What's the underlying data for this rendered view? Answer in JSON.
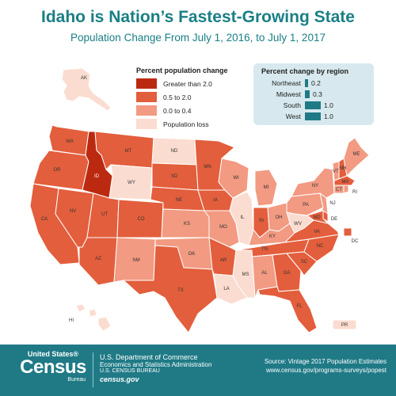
{
  "header": {
    "title": "Idaho is Nation’s Fastest-Growing State",
    "subtitle": "Population Change From July 1, 2016, to July 1, 2017"
  },
  "colors": {
    "greater_2": "#bb2a10",
    "c05_2": "#e35e3c",
    "c0_04": "#f29a82",
    "loss": "#fbdcd0",
    "border": "#ffffff",
    "accent": "#1f7a86"
  },
  "legend": {
    "title": "Percent population change",
    "items": [
      {
        "label": "Greater than 2.0",
        "key": "greater_2"
      },
      {
        "label": "0.5 to 2.0",
        "key": "c05_2"
      },
      {
        "label": "0.0 to 0.4",
        "key": "c0_04"
      },
      {
        "label": "Population loss",
        "key": "loss"
      }
    ]
  },
  "regions": {
    "title": "Percent change by region",
    "items": [
      {
        "name": "Northeast",
        "value": "0.2",
        "pct": 0.2
      },
      {
        "name": "Midwest",
        "value": "0.3",
        "pct": 0.3
      },
      {
        "name": "South",
        "value": "1.0",
        "pct": 1.0
      },
      {
        "name": "West",
        "value": "1.0",
        "pct": 1.0
      }
    ]
  },
  "states": [
    {
      "abbr": "WA",
      "cat": "c05_2"
    },
    {
      "abbr": "OR",
      "cat": "c05_2"
    },
    {
      "abbr": "CA",
      "cat": "c05_2"
    },
    {
      "abbr": "NV",
      "cat": "c05_2"
    },
    {
      "abbr": "ID",
      "cat": "greater_2"
    },
    {
      "abbr": "MT",
      "cat": "c05_2"
    },
    {
      "abbr": "WY",
      "cat": "loss"
    },
    {
      "abbr": "UT",
      "cat": "c05_2"
    },
    {
      "abbr": "AZ",
      "cat": "c05_2"
    },
    {
      "abbr": "CO",
      "cat": "c05_2"
    },
    {
      "abbr": "NM",
      "cat": "c0_04"
    },
    {
      "abbr": "ND",
      "cat": "loss"
    },
    {
      "abbr": "SD",
      "cat": "c05_2"
    },
    {
      "abbr": "NE",
      "cat": "c05_2"
    },
    {
      "abbr": "KS",
      "cat": "c0_04"
    },
    {
      "abbr": "OK",
      "cat": "c0_04"
    },
    {
      "abbr": "TX",
      "cat": "c05_2"
    },
    {
      "abbr": "MN",
      "cat": "c05_2"
    },
    {
      "abbr": "IA",
      "cat": "c05_2"
    },
    {
      "abbr": "MO",
      "cat": "c0_04"
    },
    {
      "abbr": "AR",
      "cat": "c05_2"
    },
    {
      "abbr": "LA",
      "cat": "loss"
    },
    {
      "abbr": "WI",
      "cat": "c0_04"
    },
    {
      "abbr": "IL",
      "cat": "loss"
    },
    {
      "abbr": "MS",
      "cat": "loss"
    },
    {
      "abbr": "MI",
      "cat": "c0_04"
    },
    {
      "abbr": "IN",
      "cat": "c05_2"
    },
    {
      "abbr": "KY",
      "cat": "c0_04"
    },
    {
      "abbr": "TN",
      "cat": "c05_2"
    },
    {
      "abbr": "AL",
      "cat": "c0_04"
    },
    {
      "abbr": "OH",
      "cat": "c0_04"
    },
    {
      "abbr": "GA",
      "cat": "c05_2"
    },
    {
      "abbr": "FL",
      "cat": "c05_2"
    },
    {
      "abbr": "SC",
      "cat": "c05_2"
    },
    {
      "abbr": "NC",
      "cat": "c05_2"
    },
    {
      "abbr": "VA",
      "cat": "c05_2"
    },
    {
      "abbr": "WV",
      "cat": "loss"
    },
    {
      "abbr": "PA",
      "cat": "c0_04"
    },
    {
      "abbr": "NY",
      "cat": "c0_04"
    },
    {
      "abbr": "VT",
      "cat": "c0_04"
    },
    {
      "abbr": "NH",
      "cat": "c05_2"
    },
    {
      "abbr": "ME",
      "cat": "c0_04"
    },
    {
      "abbr": "MA",
      "cat": "c05_2"
    },
    {
      "abbr": "CT",
      "cat": "c0_04"
    },
    {
      "abbr": "RI",
      "cat": "c0_04"
    },
    {
      "abbr": "NJ",
      "cat": "c0_04"
    },
    {
      "abbr": "DE",
      "cat": "c05_2"
    },
    {
      "abbr": "MD",
      "cat": "c05_2"
    },
    {
      "abbr": "DC",
      "cat": "c05_2"
    },
    {
      "abbr": "AK",
      "cat": "loss"
    },
    {
      "abbr": "HI",
      "cat": "loss"
    },
    {
      "abbr": "PR",
      "cat": "loss"
    }
  ],
  "footer": {
    "logo_top": "United States®",
    "logo_main": "Census",
    "logo_bottom": "Bureau",
    "dept": "U.S. Department of Commerce",
    "admin": "Economics and Statistics Administration",
    "bureau": "U.S. CENSUS BUREAU",
    "site": "census.gov",
    "source": "Source: Vintage 2017 Population Estimates",
    "url": "www.census.gov/programs-surveys/popest"
  }
}
